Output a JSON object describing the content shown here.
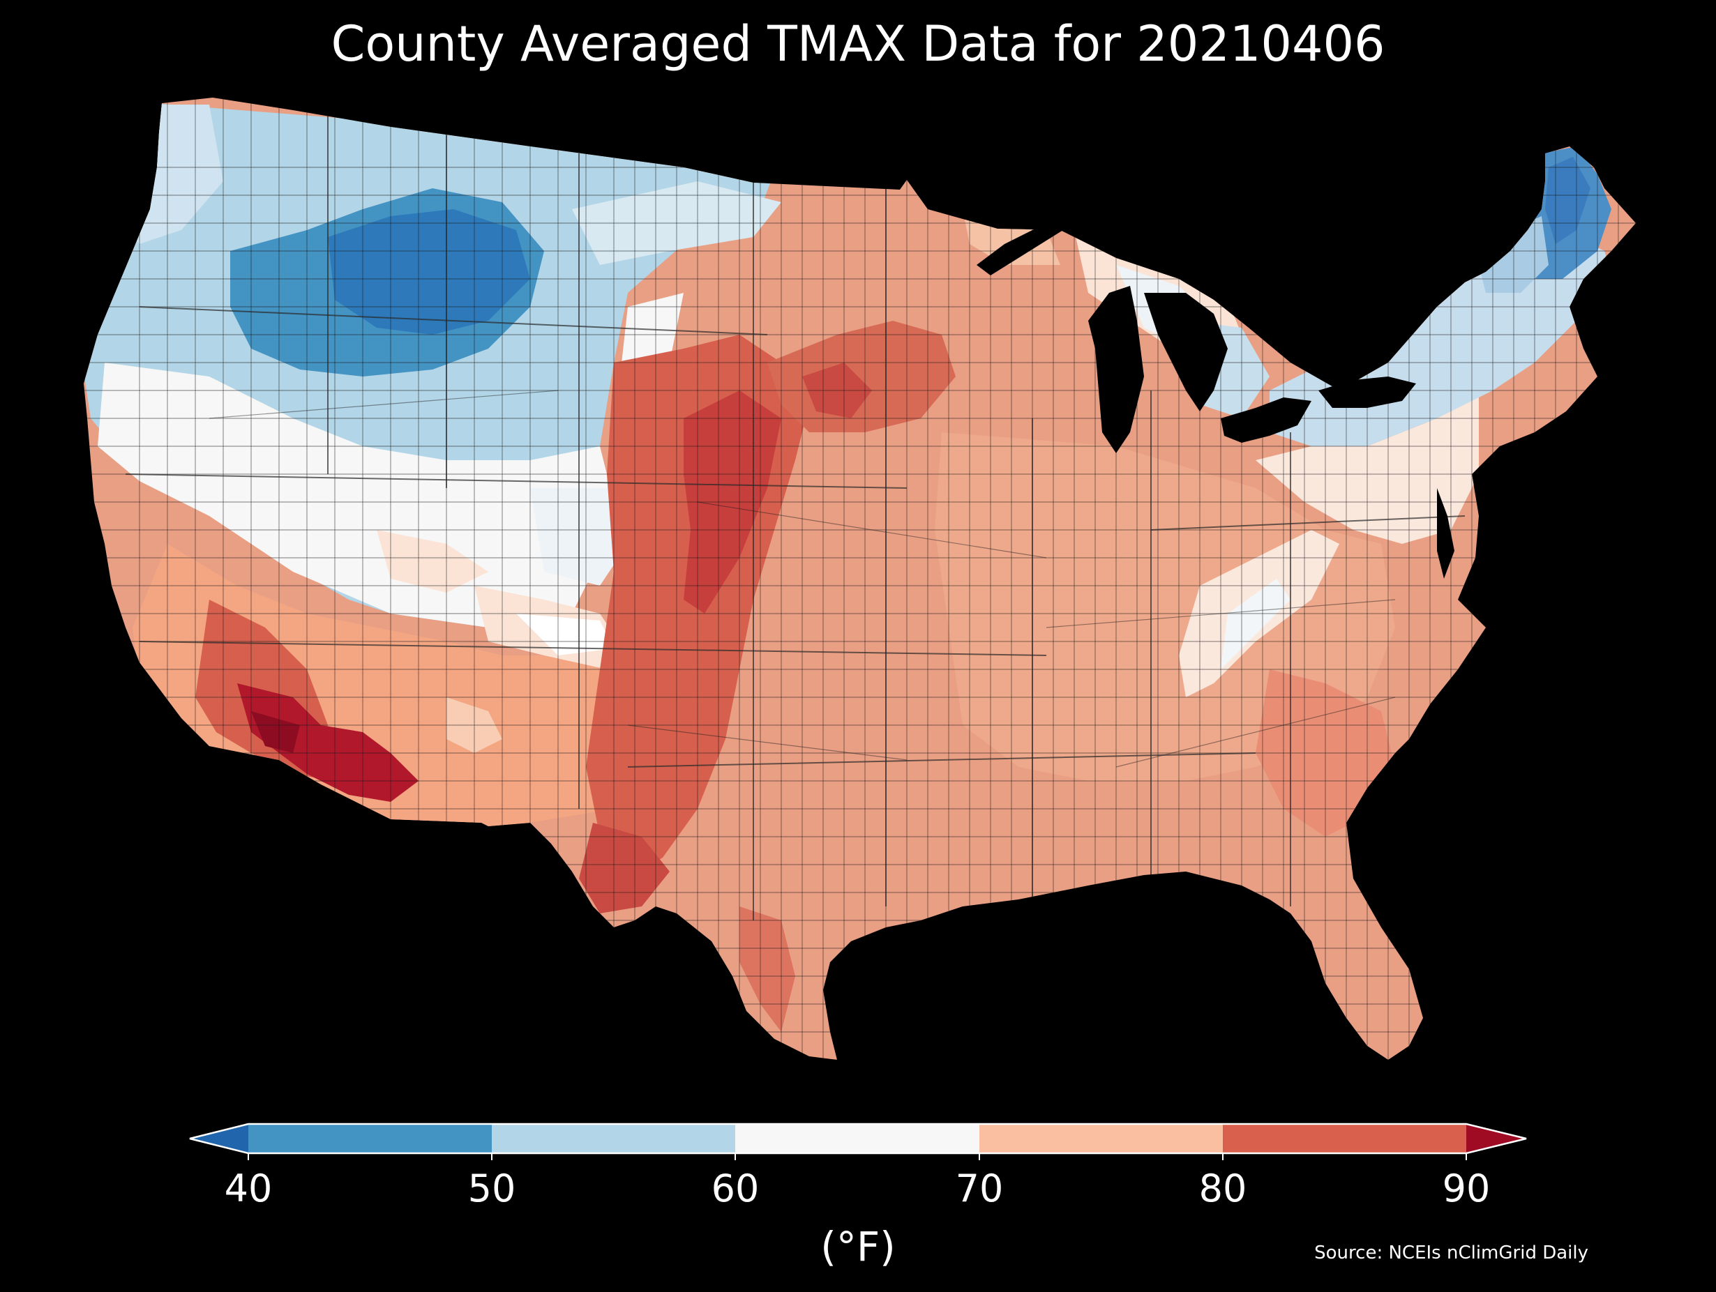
{
  "title": "County Averaged TMAX Data for 20210406",
  "colorbar": {
    "ticks": [
      "40",
      "50",
      "60",
      "70",
      "80",
      "90"
    ],
    "bins": [
      {
        "range": "<40",
        "color": "#2166ac"
      },
      {
        "range": "40-50",
        "color": "#4393c3"
      },
      {
        "range": "50-60",
        "color": "#b2d5e8"
      },
      {
        "range": "60-70",
        "color": "#f7f7f7"
      },
      {
        "range": "70-80",
        "color": "#f9bfa0"
      },
      {
        "range": "80-90",
        "color": "#d8604d"
      },
      {
        "range": ">90",
        "color": "#a00b24"
      }
    ],
    "units": "(°F)"
  },
  "source": "Source: NCEIs nClimGrid Daily"
}
